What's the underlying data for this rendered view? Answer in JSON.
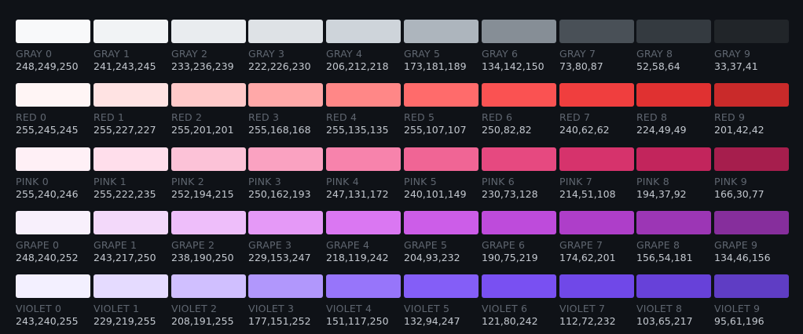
{
  "families": [
    {
      "id": "gray",
      "swatches": [
        {
          "name": "GRAY 0",
          "rgb": "248,249,250",
          "color": "#f8f9fa"
        },
        {
          "name": "GRAY 1",
          "rgb": "241,243,245",
          "color": "#f1f3f5"
        },
        {
          "name": "GRAY 2",
          "rgb": "233,236,239",
          "color": "#e9ecef"
        },
        {
          "name": "GRAY 3",
          "rgb": "222,226,230",
          "color": "#dee2e6"
        },
        {
          "name": "GRAY 4",
          "rgb": "206,212,218",
          "color": "#ced4da"
        },
        {
          "name": "GRAY 5",
          "rgb": "173,181,189",
          "color": "#adb5bd"
        },
        {
          "name": "GRAY 6",
          "rgb": "134,142,150",
          "color": "#868e96"
        },
        {
          "name": "GRAY 7",
          "rgb": "73,80,87",
          "color": "#495057"
        },
        {
          "name": "GRAY 8",
          "rgb": "52,58,64",
          "color": "#343a40"
        },
        {
          "name": "GRAY 9",
          "rgb": "33,37,41",
          "color": "#212529"
        }
      ]
    },
    {
      "id": "red",
      "swatches": [
        {
          "name": "RED 0",
          "rgb": "255,245,245",
          "color": "#fff5f5"
        },
        {
          "name": "RED 1",
          "rgb": "255,227,227",
          "color": "#ffe3e3"
        },
        {
          "name": "RED 2",
          "rgb": "255,201,201",
          "color": "#ffc9c9"
        },
        {
          "name": "RED 3",
          "rgb": "255,168,168",
          "color": "#ffa8a8"
        },
        {
          "name": "RED 4",
          "rgb": "255,135,135",
          "color": "#ff8787"
        },
        {
          "name": "RED 5",
          "rgb": "255,107,107",
          "color": "#ff6b6b"
        },
        {
          "name": "RED 6",
          "rgb": "250,82,82",
          "color": "#fa5252"
        },
        {
          "name": "RED 7",
          "rgb": "240,62,62",
          "color": "#f03e3e"
        },
        {
          "name": "RED 8",
          "rgb": "224,49,49",
          "color": "#e03131"
        },
        {
          "name": "RED 9",
          "rgb": "201,42,42",
          "color": "#c92a2a"
        }
      ]
    },
    {
      "id": "pink",
      "swatches": [
        {
          "name": "PINK 0",
          "rgb": "255,240,246",
          "color": "#fff0f6"
        },
        {
          "name": "PINK 1",
          "rgb": "255,222,235",
          "color": "#ffdeeb"
        },
        {
          "name": "PINK 2",
          "rgb": "252,194,215",
          "color": "#fcc2d7"
        },
        {
          "name": "PINK 3",
          "rgb": "250,162,193",
          "color": "#faa2c1"
        },
        {
          "name": "PINK 4",
          "rgb": "247,131,172",
          "color": "#f783ac"
        },
        {
          "name": "PINK 5",
          "rgb": "240,101,149",
          "color": "#f06595"
        },
        {
          "name": "PINK 6",
          "rgb": "230,73,128",
          "color": "#e64980"
        },
        {
          "name": "PINK 7",
          "rgb": "214,51,108",
          "color": "#d6336c"
        },
        {
          "name": "PINK 8",
          "rgb": "194,37,92",
          "color": "#c2255c"
        },
        {
          "name": "PINK 9",
          "rgb": "166,30,77",
          "color": "#a61e4d"
        }
      ]
    },
    {
      "id": "grape",
      "swatches": [
        {
          "name": "GRAPE 0",
          "rgb": "248,240,252",
          "color": "#f8f0fc"
        },
        {
          "name": "GRAPE 1",
          "rgb": "243,217,250",
          "color": "#f3d9fa"
        },
        {
          "name": "GRAPE 2",
          "rgb": "238,190,250",
          "color": "#eebefa"
        },
        {
          "name": "GRAPE 3",
          "rgb": "229,153,247",
          "color": "#e599f7"
        },
        {
          "name": "GRAPE 4",
          "rgb": "218,119,242",
          "color": "#da77f2"
        },
        {
          "name": "GRAPE 5",
          "rgb": "204,93,232",
          "color": "#cc5de8"
        },
        {
          "name": "GRAPE 6",
          "rgb": "190,75,219",
          "color": "#be4bdb"
        },
        {
          "name": "GRAPE 7",
          "rgb": "174,62,201",
          "color": "#ae3ec9"
        },
        {
          "name": "GRAPE 8",
          "rgb": "156,54,181",
          "color": "#9c36b5"
        },
        {
          "name": "GRAPE 9",
          "rgb": "134,46,156",
          "color": "#862e9c"
        }
      ]
    },
    {
      "id": "violet",
      "swatches": [
        {
          "name": "VIOLET 0",
          "rgb": "243,240,255",
          "color": "#f3f0ff"
        },
        {
          "name": "VIOLET 1",
          "rgb": "229,219,255",
          "color": "#e5dbff"
        },
        {
          "name": "VIOLET 2",
          "rgb": "208,191,255",
          "color": "#d0bfff"
        },
        {
          "name": "VIOLET 3",
          "rgb": "177,151,252",
          "color": "#b197fc"
        },
        {
          "name": "VIOLET 4",
          "rgb": "151,117,250",
          "color": "#9775fa"
        },
        {
          "name": "VIOLET 5",
          "rgb": "132,94,247",
          "color": "#845ef7"
        },
        {
          "name": "VIOLET 6",
          "rgb": "121,80,242",
          "color": "#7950f2"
        },
        {
          "name": "VIOLET 7",
          "rgb": "112,72,232",
          "color": "#7048e8"
        },
        {
          "name": "VIOLET 8",
          "rgb": "103,65,217",
          "color": "#6741d9"
        },
        {
          "name": "VIOLET 9",
          "rgb": "95,61,196",
          "color": "#5f3dc4"
        }
      ]
    }
  ]
}
